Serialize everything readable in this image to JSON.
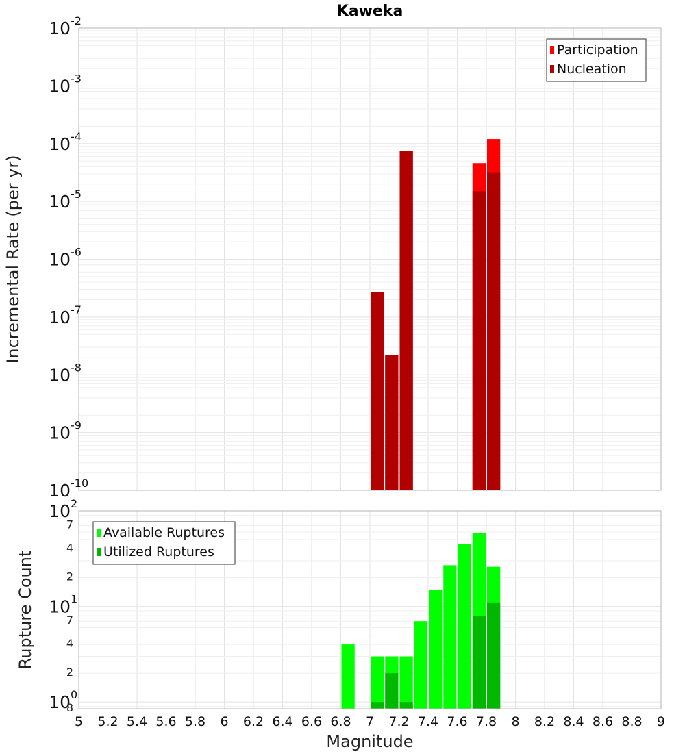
{
  "chart_data": [
    {
      "type": "bar",
      "title": "Kaweka",
      "xlabel": "",
      "ylabel": "Incremental Rate (per yr)",
      "xlim": [
        5,
        9
      ],
      "ylim": [
        1e-10,
        0.01
      ],
      "yscale": "log",
      "grid": true,
      "legend_position": "top-right",
      "bar_width": 0.1,
      "x_ticks": [
        "5",
        "5.2",
        "5.4",
        "5.6",
        "5.8",
        "6",
        "6.2",
        "6.4",
        "6.6",
        "6.8",
        "7",
        "7.2",
        "7.4",
        "7.6",
        "7.8",
        "8",
        "8.2",
        "8.4",
        "8.6",
        "8.8",
        "9"
      ],
      "y_ticks": [
        {
          "value": 0.01,
          "base": "10",
          "exp": "-2"
        },
        {
          "value": 0.001,
          "base": "10",
          "exp": "-3"
        },
        {
          "value": 0.0001,
          "base": "10",
          "exp": "-4"
        },
        {
          "value": 1e-05,
          "base": "10",
          "exp": "-5"
        },
        {
          "value": 1e-06,
          "base": "10",
          "exp": "-6"
        },
        {
          "value": 1e-07,
          "base": "10",
          "exp": "-7"
        },
        {
          "value": 1e-08,
          "base": "10",
          "exp": "-8"
        },
        {
          "value": 1e-09,
          "base": "10",
          "exp": "-9"
        },
        {
          "value": 1e-10,
          "base": "10",
          "exp": "-10"
        }
      ],
      "series": [
        {
          "name": "Participation",
          "color": "#ff0000",
          "x": [
            7.05,
            7.15,
            7.25,
            7.75,
            7.85
          ],
          "values": [
            2.7e-07,
            2.2e-08,
            7.5e-05,
            4.6e-05,
            0.00012
          ]
        },
        {
          "name": "Nucleation",
          "color": "#b00000",
          "x": [
            7.05,
            7.15,
            7.25,
            7.75,
            7.85
          ],
          "values": [
            2.7e-07,
            2.2e-08,
            7.5e-05,
            1.5e-05,
            3.2e-05
          ]
        }
      ]
    },
    {
      "type": "bar",
      "title": "",
      "xlabel": "Magnitude",
      "ylabel": "Rupture Count",
      "xlim": [
        5,
        9
      ],
      "ylim": [
        0.85,
        100
      ],
      "yscale": "log",
      "grid": true,
      "legend_position": "top-left",
      "bar_width": 0.1,
      "x_ticks": [
        "5",
        "5.2",
        "5.4",
        "5.6",
        "5.8",
        "6",
        "6.2",
        "6.4",
        "6.6",
        "6.8",
        "7",
        "7.2",
        "7.4",
        "7.6",
        "7.8",
        "8",
        "8.2",
        "8.4",
        "8.6",
        "8.8",
        "9"
      ],
      "y_ticks": [
        {
          "value": 100,
          "base": "10",
          "exp": "2"
        },
        {
          "value": 10,
          "base": "10",
          "exp": "1"
        },
        {
          "value": 1,
          "base": "10",
          "exp": "0"
        }
      ],
      "y_minor_ticks": [
        {
          "value": 70,
          "label": "7"
        },
        {
          "value": 40,
          "label": "4"
        },
        {
          "value": 20,
          "label": "2"
        },
        {
          "value": 7,
          "label": "7"
        },
        {
          "value": 4,
          "label": "4"
        },
        {
          "value": 2,
          "label": "2"
        },
        {
          "value": 0.85,
          "label": "8"
        }
      ],
      "series": [
        {
          "name": "Available Ruptures",
          "color": "#00ff00",
          "x": [
            6.85,
            7.05,
            7.15,
            7.25,
            7.35,
            7.45,
            7.55,
            7.65,
            7.75,
            7.85
          ],
          "values": [
            4,
            3,
            3,
            3,
            7,
            15,
            27,
            45,
            58,
            26
          ]
        },
        {
          "name": "Utilized Ruptures",
          "color": "#00b800",
          "x": [
            7.05,
            7.15,
            7.25,
            7.75,
            7.85
          ],
          "values": [
            1,
            2,
            1,
            8,
            11
          ]
        }
      ]
    }
  ]
}
